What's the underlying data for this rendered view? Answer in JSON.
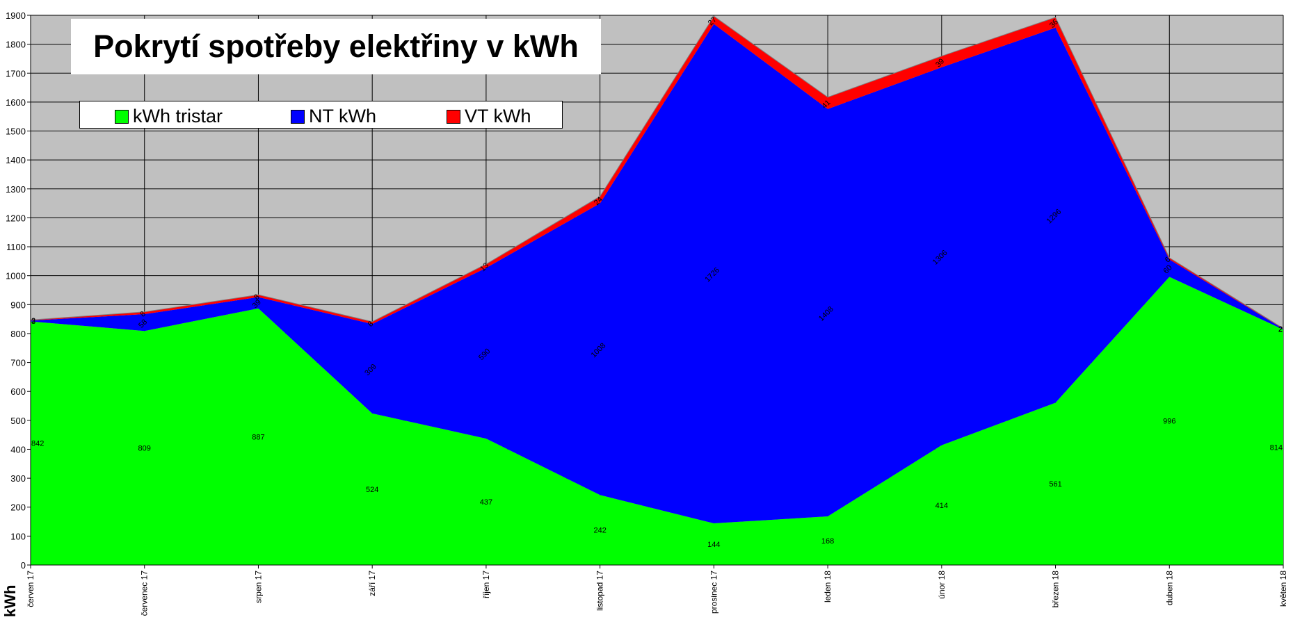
{
  "chart_data": {
    "type": "area",
    "stacked": true,
    "title": "Pokrytí spotřeby elektřiny v kWh",
    "xlabel": "",
    "ylabel": "kWh",
    "ylim": [
      0,
      1900
    ],
    "ytick_step": 100,
    "grid": true,
    "legend_position": "top-left",
    "categories": [
      "červen 17",
      "červenec 17",
      "srpen 17",
      "září 17",
      "říjen 17",
      "listopad 17",
      "prosinec 17",
      "leden 18",
      "únor 18",
      "březen 18",
      "duben 18",
      "květen 18"
    ],
    "series": [
      {
        "name": "kWh tristar",
        "color": "#00ff00",
        "values": [
          842,
          809,
          887,
          524,
          437,
          242,
          144,
          168,
          414,
          561,
          996,
          814
        ]
      },
      {
        "name": "NT kWh",
        "color": "#0000ff",
        "values": [
          3,
          58,
          39,
          309,
          590,
          1008,
          1726,
          1408,
          1306,
          1296,
          60,
          2
        ]
      },
      {
        "name": "VT kWh",
        "color": "#ff0000",
        "values": [
          2,
          8,
          8,
          8,
          13,
          24,
          27,
          41,
          39,
          36,
          6,
          2
        ]
      }
    ],
    "data_labels": {
      "kWh tristar": [
        "842",
        "809",
        "887",
        "524",
        "437",
        "242",
        "144",
        "168",
        "414",
        "561",
        "996",
        "814"
      ],
      "NT kWh": [
        "3",
        "58",
        "39",
        "309",
        "590",
        "1008",
        "1726",
        "1408",
        "1306",
        "1296",
        "60",
        "2"
      ],
      "VT kWh": [
        "2",
        "8",
        "8",
        "8",
        "13",
        "24",
        "27",
        "41",
        "39",
        "36",
        "6",
        "2"
      ]
    }
  }
}
